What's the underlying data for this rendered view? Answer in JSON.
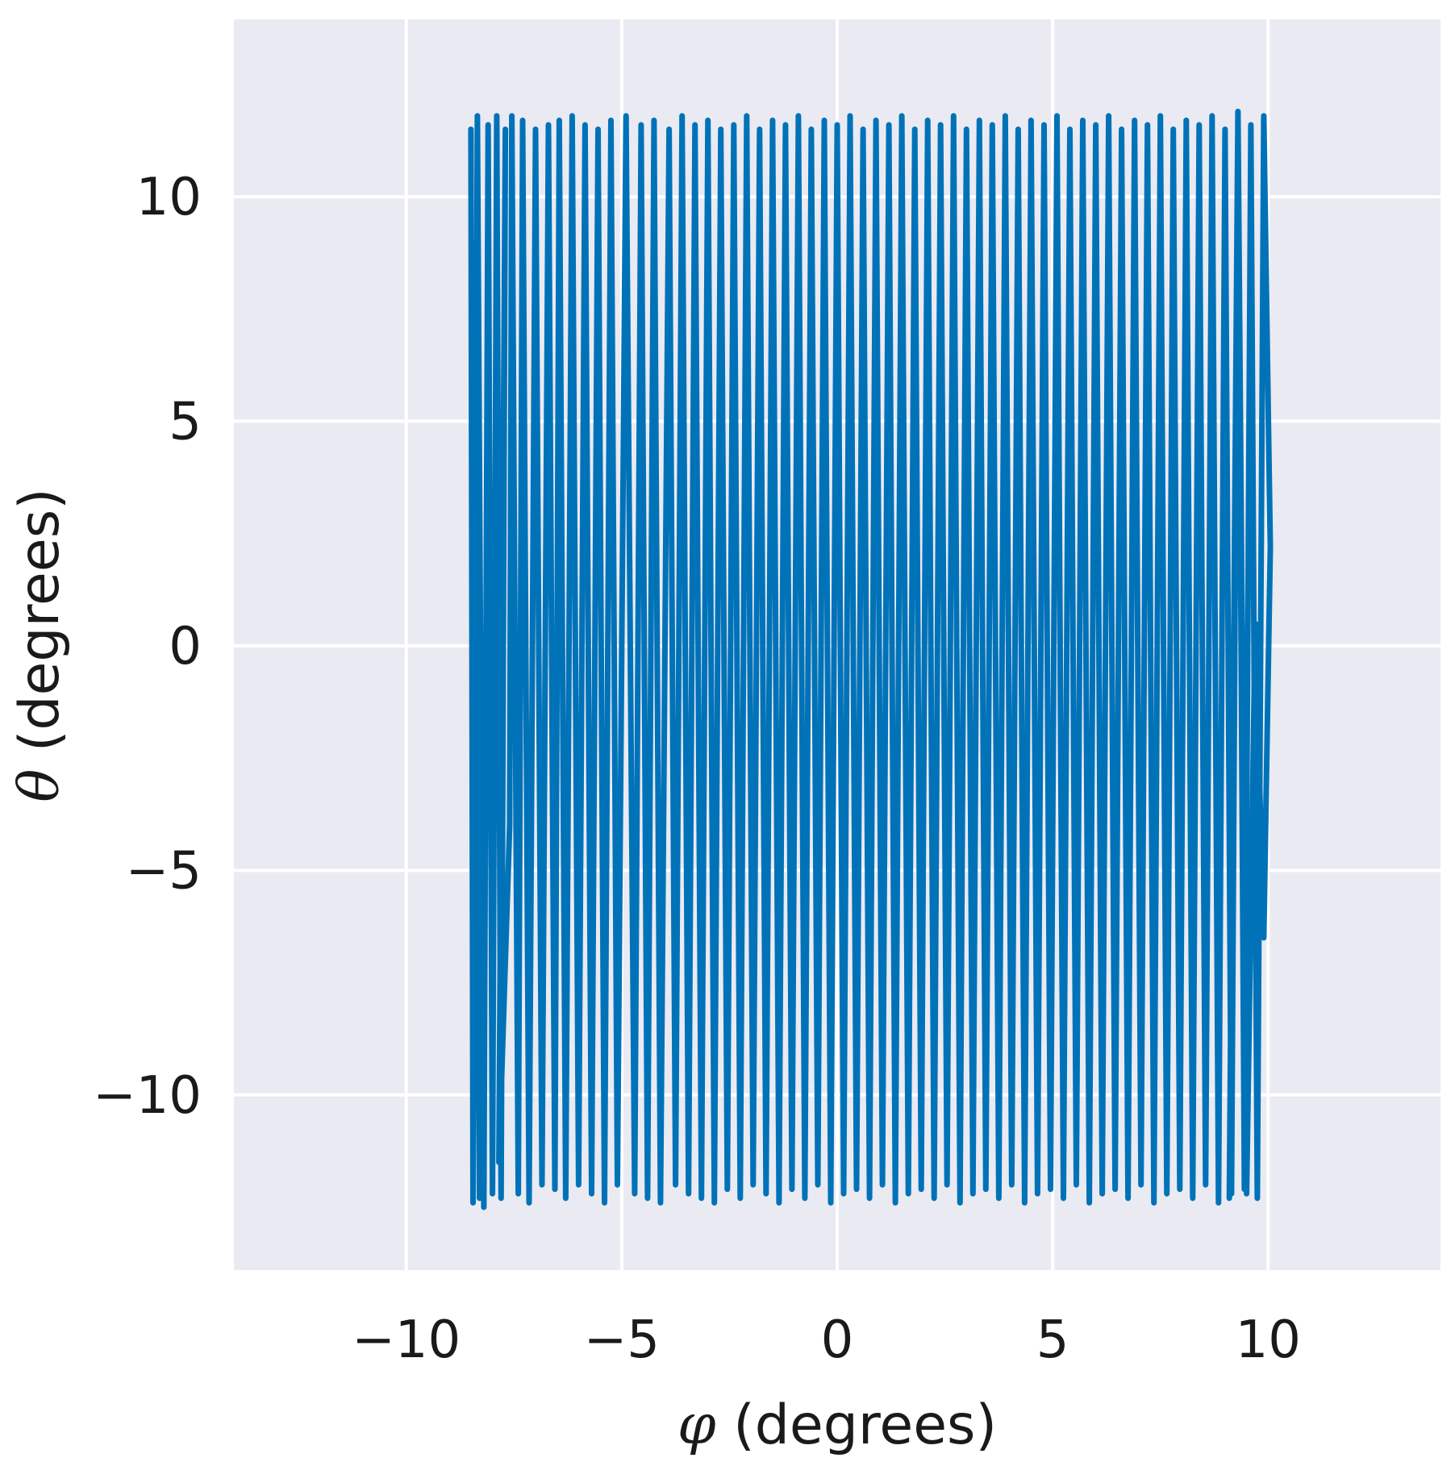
{
  "chart_data": {
    "type": "line",
    "title": "",
    "xlabel_symbol": "φ",
    "xlabel_rest": " (degrees)",
    "ylabel_symbol": "θ",
    "ylabel_rest": " (degrees)",
    "xlim": [
      -14.0,
      14.0
    ],
    "ylim": [
      -13.9,
      13.95
    ],
    "xticks": [
      -10,
      -5,
      0,
      5,
      10
    ],
    "xtick_labels": [
      "−10",
      "−5",
      "0",
      "5",
      "10"
    ],
    "yticks": [
      -10,
      -5,
      0,
      5,
      10
    ],
    "ytick_labels": [
      "−10",
      "−5",
      "0",
      "5",
      "10"
    ],
    "grid": true,
    "colors": {
      "background": "#eaeaf2",
      "grid": "#ffffff",
      "line": "#0072b8"
    },
    "series": [
      {
        "x": [
          -8.5,
          -8.45,
          -8.35,
          -8.3,
          -8.4,
          -8.45,
          -8.35,
          -8.2,
          -8.1,
          -8.0,
          -7.9,
          -7.8,
          -7.7,
          -7.85,
          -7.6,
          -7.55,
          -7.4,
          -7.3,
          -7.15,
          -7.0,
          -6.85,
          -6.7,
          -6.55,
          -6.45,
          -6.3,
          -6.15,
          -6.0,
          -5.85,
          -5.7,
          -5.55,
          -5.4,
          -5.25,
          -5.1,
          -4.9,
          -4.7,
          -4.55,
          -4.4,
          -4.25,
          -4.1,
          -3.9,
          -3.75,
          -3.6,
          -3.45,
          -3.3,
          -3.15,
          -3.0,
          -2.85,
          -2.7,
          -2.55,
          -2.4,
          -2.25,
          -2.1,
          -1.95,
          -1.8,
          -1.65,
          -1.5,
          -1.35,
          -1.2,
          -1.05,
          -0.9,
          -0.75,
          -0.6,
          -0.45,
          -0.3,
          -0.15,
          0.0,
          0.15,
          0.3,
          0.45,
          0.6,
          0.75,
          0.9,
          1.05,
          1.2,
          1.35,
          1.5,
          1.65,
          1.8,
          1.95,
          2.1,
          2.25,
          2.4,
          2.55,
          2.7,
          2.85,
          3.0,
          3.15,
          3.3,
          3.45,
          3.6,
          3.75,
          3.9,
          4.05,
          4.2,
          4.35,
          4.5,
          4.65,
          4.8,
          4.95,
          5.1,
          5.25,
          5.4,
          5.55,
          5.7,
          5.85,
          6.0,
          6.15,
          6.3,
          6.45,
          6.6,
          6.75,
          6.9,
          7.05,
          7.2,
          7.35,
          7.5,
          7.65,
          7.8,
          7.95,
          8.1,
          8.25,
          8.4,
          8.55,
          8.7,
          8.85,
          9.0,
          9.15,
          9.3,
          9.45,
          9.6,
          9.75,
          9.9,
          10.05,
          9.9,
          9.7,
          9.5,
          9.3,
          9.1
        ],
        "y": [
          11.5,
          -12.4,
          11.8,
          -12.3,
          9.0,
          -12.0,
          11.7,
          -12.5,
          11.6,
          -12.2,
          11.8,
          -12.3,
          11.5,
          -11.5,
          -4.0,
          11.8,
          -12.2,
          11.7,
          -12.4,
          11.5,
          -12.0,
          11.6,
          -12.1,
          11.7,
          -12.3,
          11.8,
          -12.0,
          11.6,
          -12.2,
          11.5,
          -12.4,
          11.7,
          -12.0,
          11.8,
          -12.2,
          11.6,
          -12.3,
          11.7,
          -12.4,
          11.5,
          -12.0,
          11.8,
          -12.2,
          11.6,
          -12.3,
          11.7,
          -12.4,
          11.5,
          -12.1,
          11.6,
          -12.3,
          11.8,
          -12.0,
          11.5,
          -12.2,
          11.7,
          -12.4,
          11.6,
          -12.1,
          11.8,
          -12.3,
          11.5,
          -12.0,
          11.7,
          -12.4,
          11.6,
          -12.2,
          11.8,
          -12.1,
          11.5,
          -12.3,
          11.7,
          -12.0,
          11.6,
          -12.4,
          11.8,
          -12.2,
          11.5,
          -12.1,
          11.7,
          -12.3,
          11.6,
          -12.0,
          11.8,
          -12.4,
          11.5,
          -12.2,
          11.7,
          -12.1,
          11.6,
          -12.3,
          11.8,
          -12.0,
          11.5,
          -12.4,
          11.7,
          -12.2,
          11.6,
          -12.1,
          11.8,
          -12.3,
          11.5,
          -12.0,
          11.7,
          -12.4,
          11.6,
          -12.2,
          11.8,
          -12.1,
          11.5,
          -12.3,
          11.7,
          -12.0,
          11.6,
          -12.4,
          11.8,
          -12.2,
          11.5,
          -12.1,
          11.7,
          -12.3,
          11.6,
          -12.0,
          11.8,
          -12.4,
          11.5,
          -12.2,
          11.7,
          -12.1,
          11.6,
          -12.3,
          11.8,
          2.2,
          -6.5,
          0.5,
          -12.2,
          11.9,
          -12.3
        ]
      }
    ]
  }
}
